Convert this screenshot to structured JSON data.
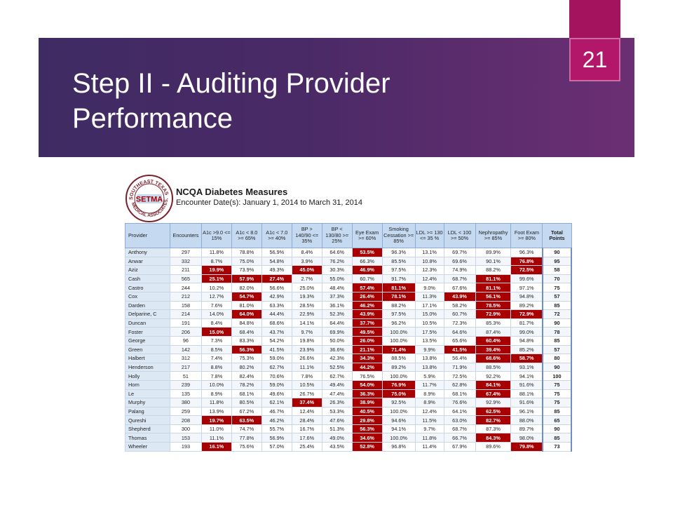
{
  "slide": {
    "title": "Step II - Auditing Provider Performance",
    "number": "21"
  },
  "report": {
    "title": "NCQA Diabetes Measures",
    "subtitle": "Encounter Date(s): January 1, 2014 to March 31, 2014",
    "logo": {
      "icon": "setma-seal-logo",
      "text_ring": "SOUTHEAST TEXAS MEDICAL ASSOCIATES, L.L.P.",
      "center_text": "SETMA"
    },
    "colors": {
      "flag": "#a80000",
      "header": "#c5d9f1",
      "provider_cell": "#dde8f5"
    },
    "columns": [
      "Provider",
      "Encounters",
      "A1c >9.0 <= 15%",
      "A1c < 8.0 >= 65%",
      "A1c < 7.0 >= 40%",
      "BP > 140/90 <= 35%",
      "BP < 130/80 >= 25%",
      "Eye Exam >= 60%",
      "Smoking Cessation >= 85%",
      "LDL >= 130 <= 35 %",
      "LDL < 100 >= 50%",
      "Nephropathy >= 85%",
      "Foot Exam >= 80%",
      "Total Points"
    ],
    "rows": [
      {
        "cells": [
          "Anthony",
          "297",
          "11.8%",
          "78.8%",
          "56.9%",
          "8.4%",
          "64.6%",
          "53.5%",
          "96.3%",
          "13.1%",
          "69.7%",
          "89.9%",
          "96.3%",
          "90"
        ],
        "flags": [
          7
        ]
      },
      {
        "cells": [
          "Anwar",
          "332",
          "8.7%",
          "75.0%",
          "54.8%",
          "3.9%",
          "76.2%",
          "66.3%",
          "85.5%",
          "10.8%",
          "69.6%",
          "90.1%",
          "76.8%",
          "95"
        ],
        "flags": [
          12
        ]
      },
      {
        "cells": [
          "Aziz",
          "211",
          "19.9%",
          "73.9%",
          "49.3%",
          "45.0%",
          "30.3%",
          "46.9%",
          "97.5%",
          "12.3%",
          "74.9%",
          "88.2%",
          "72.5%",
          "58"
        ],
        "flags": [
          2,
          5,
          7,
          12
        ]
      },
      {
        "cells": [
          "Cash",
          "565",
          "25.1%",
          "57.9%",
          "27.4%",
          "2.7%",
          "55.0%",
          "60.7%",
          "91.7%",
          "12.4%",
          "68.7%",
          "81.1%",
          "99.6%",
          "70"
        ],
        "flags": [
          2,
          3,
          4,
          11
        ]
      },
      {
        "cells": [
          "Castro",
          "244",
          "10.2%",
          "82.0%",
          "56.6%",
          "25.0%",
          "48.4%",
          "57.4%",
          "81.1%",
          "9.0%",
          "67.6%",
          "81.1%",
          "97.1%",
          "75"
        ],
        "flags": [
          7,
          8,
          11
        ]
      },
      {
        "cells": [
          "Cox",
          "212",
          "12.7%",
          "54.7%",
          "42.9%",
          "19.3%",
          "37.3%",
          "26.4%",
          "78.1%",
          "11.3%",
          "43.9%",
          "56.1%",
          "94.8%",
          "57"
        ],
        "flags": [
          3,
          7,
          8,
          10,
          11
        ]
      },
      {
        "cells": [
          "Darden",
          "158",
          "7.6%",
          "81.0%",
          "63.3%",
          "28.5%",
          "36.1%",
          "46.2%",
          "88.2%",
          "17.1%",
          "58.2%",
          "78.5%",
          "89.2%",
          "85"
        ],
        "flags": [
          7,
          11
        ]
      },
      {
        "cells": [
          "Delparine, C",
          "214",
          "14.0%",
          "64.0%",
          "44.4%",
          "22.9%",
          "52.3%",
          "43.9%",
          "97.5%",
          "15.0%",
          "60.7%",
          "72.9%",
          "72.9%",
          "72"
        ],
        "flags": [
          3,
          7,
          11,
          12
        ]
      },
      {
        "cells": [
          "Duncan",
          "191",
          "8.4%",
          "84.8%",
          "68.6%",
          "14.1%",
          "64.4%",
          "37.7%",
          "96.2%",
          "10.5%",
          "72.3%",
          "85.3%",
          "81.7%",
          "90"
        ],
        "flags": [
          7
        ]
      },
      {
        "cells": [
          "Foster",
          "206",
          "15.0%",
          "68.4%",
          "43.7%",
          "9.7%",
          "69.9%",
          "49.5%",
          "100.0%",
          "17.5%",
          "64.6%",
          "87.4%",
          "99.0%",
          "78"
        ],
        "flags": [
          2,
          7
        ]
      },
      {
        "cells": [
          "George",
          "96",
          "7.3%",
          "83.3%",
          "54.2%",
          "19.8%",
          "50.0%",
          "26.0%",
          "100.0%",
          "13.5%",
          "65.6%",
          "60.4%",
          "94.8%",
          "85"
        ],
        "flags": [
          7,
          11
        ]
      },
      {
        "cells": [
          "Green",
          "142",
          "8.5%",
          "56.3%",
          "41.5%",
          "23.9%",
          "36.6%",
          "21.1%",
          "71.4%",
          "9.9%",
          "41.5%",
          "39.4%",
          "85.2%",
          "57"
        ],
        "flags": [
          3,
          7,
          8,
          10,
          11
        ]
      },
      {
        "cells": [
          "Halbert",
          "312",
          "7.4%",
          "75.3%",
          "59.0%",
          "26.6%",
          "42.3%",
          "34.3%",
          "88.5%",
          "13.8%",
          "56.4%",
          "68.6%",
          "58.7%",
          "80"
        ],
        "flags": [
          7,
          11,
          12
        ]
      },
      {
        "cells": [
          "Henderson",
          "217",
          "8.8%",
          "80.2%",
          "62.7%",
          "11.1%",
          "52.5%",
          "44.2%",
          "89.2%",
          "13.8%",
          "71.9%",
          "88.5%",
          "93.1%",
          "90"
        ],
        "flags": [
          7
        ]
      },
      {
        "cells": [
          "Holly",
          "51",
          "7.8%",
          "82.4%",
          "70.6%",
          "7.8%",
          "62.7%",
          "76.5%",
          "100.0%",
          "5.9%",
          "72.5%",
          "92.2%",
          "94.1%",
          "100"
        ],
        "flags": []
      },
      {
        "cells": [
          "Horn",
          "239",
          "10.0%",
          "78.2%",
          "59.0%",
          "10.5%",
          "49.4%",
          "54.0%",
          "76.9%",
          "11.7%",
          "62.8%",
          "84.1%",
          "91.6%",
          "75"
        ],
        "flags": [
          7,
          8,
          11
        ]
      },
      {
        "cells": [
          "Le",
          "135",
          "8.9%",
          "68.1%",
          "49.6%",
          "26.7%",
          "47.4%",
          "36.3%",
          "75.0%",
          "8.9%",
          "68.1%",
          "67.4%",
          "88.1%",
          "75"
        ],
        "flags": [
          7,
          8,
          11
        ]
      },
      {
        "cells": [
          "Murphy",
          "380",
          "11.8%",
          "80.5%",
          "62.1%",
          "37.4%",
          "26.3%",
          "38.9%",
          "92.5%",
          "8.9%",
          "76.6%",
          "92.9%",
          "91.6%",
          "75"
        ],
        "flags": [
          5,
          7
        ]
      },
      {
        "cells": [
          "Palang",
          "259",
          "13.9%",
          "67.2%",
          "46.7%",
          "12.4%",
          "53.3%",
          "40.5%",
          "100.0%",
          "12.4%",
          "64.1%",
          "62.5%",
          "96.1%",
          "85"
        ],
        "flags": [
          7,
          11
        ]
      },
      {
        "cells": [
          "Qureshi",
          "208",
          "19.7%",
          "63.5%",
          "46.2%",
          "28.4%",
          "47.6%",
          "29.8%",
          "94.6%",
          "11.5%",
          "63.0%",
          "82.7%",
          "88.0%",
          "65"
        ],
        "flags": [
          2,
          3,
          7,
          11
        ]
      },
      {
        "cells": [
          "Shepherd",
          "300",
          "11.0%",
          "74.7%",
          "55.7%",
          "16.7%",
          "51.3%",
          "56.3%",
          "94.1%",
          "9.7%",
          "68.7%",
          "87.3%",
          "89.7%",
          "90"
        ],
        "flags": [
          7
        ]
      },
      {
        "cells": [
          "Thomas",
          "153",
          "11.1%",
          "77.8%",
          "56.9%",
          "17.6%",
          "49.0%",
          "34.6%",
          "100.0%",
          "11.8%",
          "66.7%",
          "84.3%",
          "98.0%",
          "85"
        ],
        "flags": [
          7,
          11
        ]
      },
      {
        "cells": [
          "Wheeler",
          "193",
          "16.1%",
          "75.6%",
          "57.0%",
          "25.4%",
          "43.5%",
          "52.8%",
          "96.8%",
          "11.4%",
          "67.9%",
          "89.6%",
          "79.8%",
          "73"
        ],
        "flags": [
          2,
          7,
          12
        ]
      }
    ]
  }
}
